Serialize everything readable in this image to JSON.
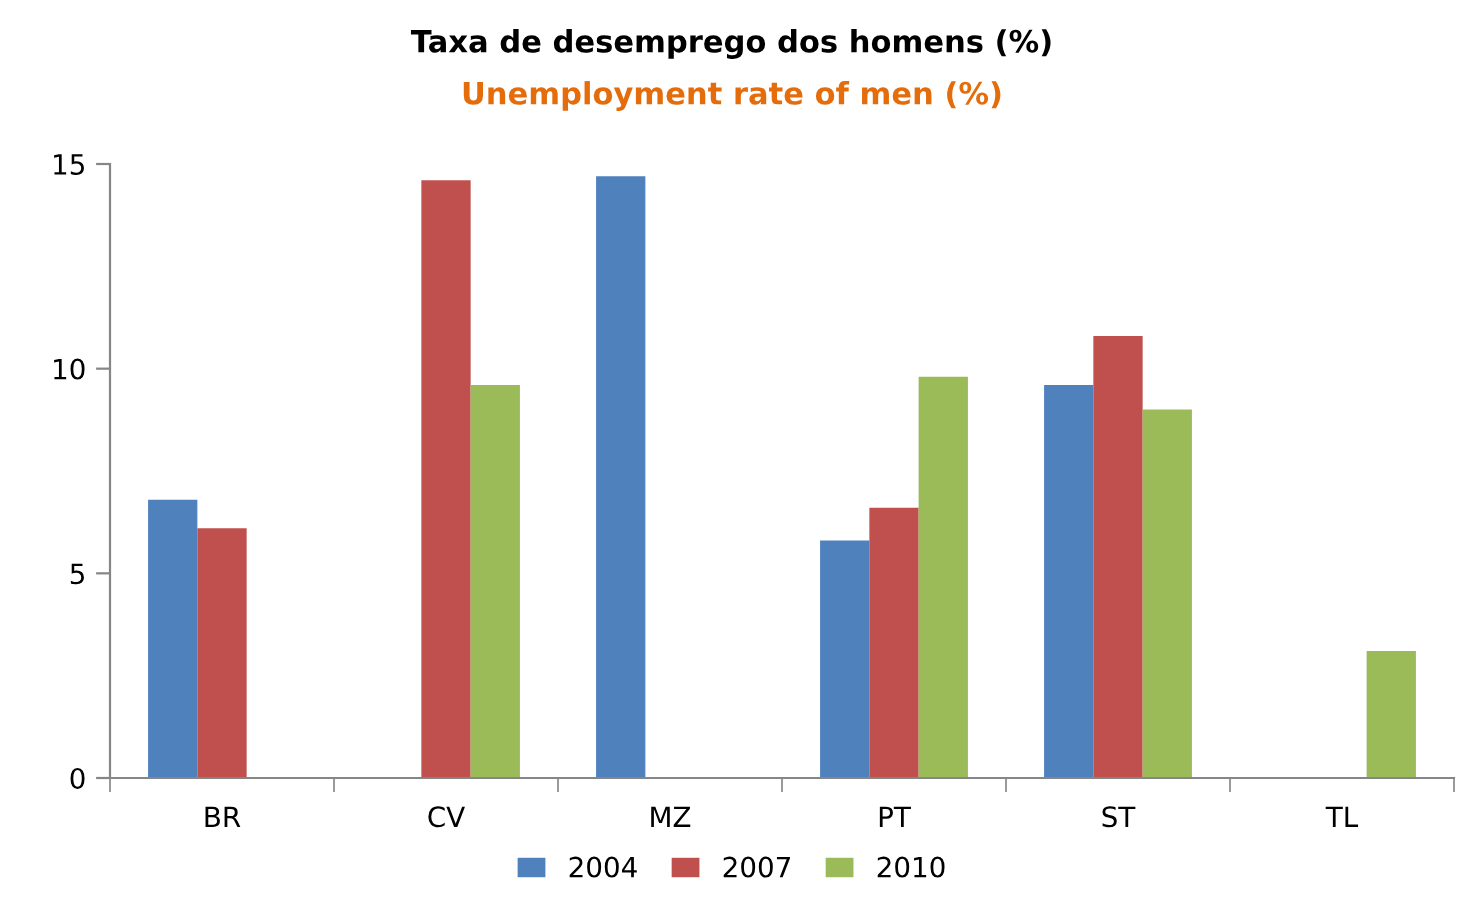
{
  "chart_data": {
    "type": "bar",
    "title": "Taxa de desemprego dos homens (%)",
    "subtitle": "Unemployment rate of men (%)",
    "categories": [
      "BR",
      "CV",
      "MZ",
      "PT",
      "ST",
      "TL"
    ],
    "series": [
      {
        "name": "2004",
        "color": "#4f81bd",
        "values": [
          6.8,
          null,
          14.7,
          5.8,
          9.6,
          null
        ]
      },
      {
        "name": "2007",
        "color": "#c0504d",
        "values": [
          6.1,
          14.6,
          null,
          6.6,
          10.8,
          null
        ]
      },
      {
        "name": "2010",
        "color": "#9bbb59",
        "values": [
          null,
          9.6,
          null,
          9.8,
          9.0,
          3.1
        ]
      }
    ],
    "ylim": [
      0,
      15
    ],
    "yticks": [
      0,
      5,
      10,
      15
    ],
    "grid": false,
    "legend": "bottom"
  }
}
